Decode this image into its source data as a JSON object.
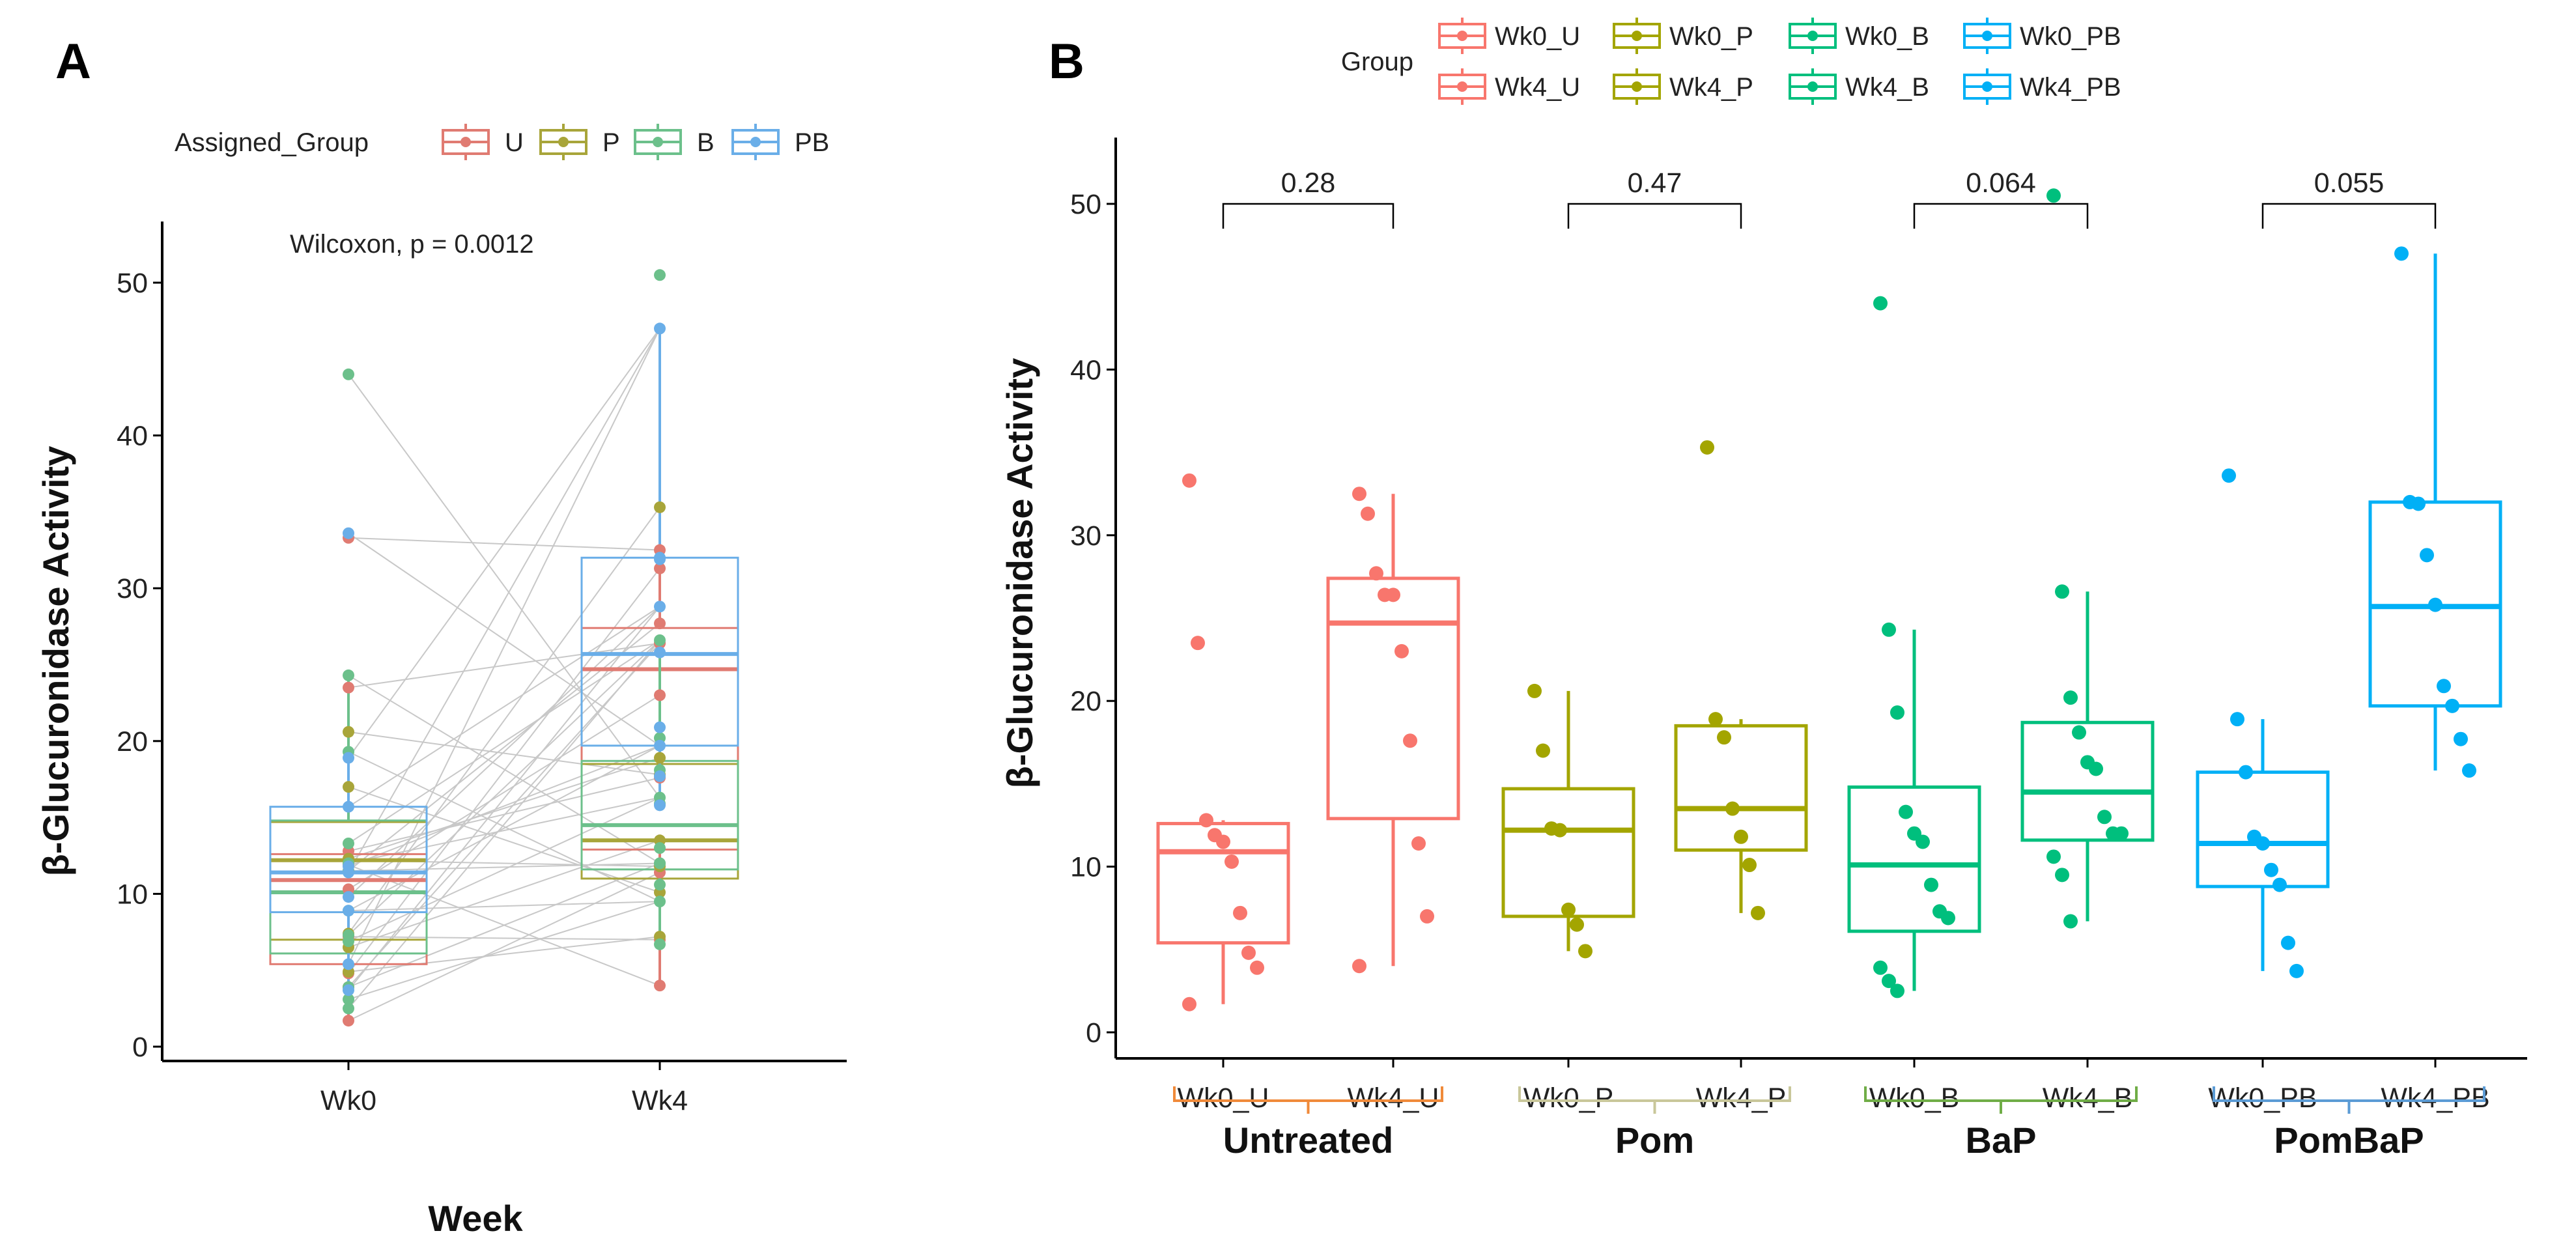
{
  "colors_a": {
    "U": "#e07b72",
    "P": "#a8a53a",
    "B": "#6cc08b",
    "PB": "#6aaee8"
  },
  "colors_b": {
    "U": "#f8766d",
    "P": "#a3a500",
    "B": "#00bf7d",
    "PB": "#00b0f6"
  },
  "chart_data": [
    {
      "panel": "A",
      "type": "box",
      "panel_label": "A",
      "xlabel": "Week",
      "ylabel": "β-Glucuronidase Activity",
      "ylim": [
        0,
        52
      ],
      "yticks": [
        0,
        10,
        20,
        30,
        40,
        50
      ],
      "categories": [
        "Wk0",
        "Wk4"
      ],
      "legend": {
        "title": "Assigned_Group",
        "entries": [
          "U",
          "P",
          "B",
          "PB"
        ],
        "placement": "top"
      },
      "annotation": "Wilcoxon, p = 0.0012",
      "paired_lines": true,
      "line_color": "#c8c8c8"
    },
    {
      "panel": "B",
      "type": "box",
      "panel_label": "B",
      "ylabel": "β-Glucuronidase Activity",
      "ylim": [
        0,
        52
      ],
      "yticks": [
        0,
        10,
        20,
        30,
        40,
        50
      ],
      "legend": {
        "title": "Group",
        "entries": [
          "Wk0_U",
          "Wk4_U",
          "Wk0_P",
          "Wk4_P",
          "Wk0_B",
          "Wk4_B",
          "Wk0_PB",
          "Wk4_PB"
        ],
        "placement": "top"
      },
      "categories": [
        "Wk0_U",
        "Wk4_U",
        "Wk0_P",
        "Wk4_P",
        "Wk0_B",
        "Wk4_B",
        "Wk0_PB",
        "Wk4_PB"
      ],
      "series": [
        {
          "name": "Wk0_U",
          "group": "U",
          "box": {
            "low": 1.7,
            "q1": 5.4,
            "median": 10.9,
            "q3": 12.6,
            "high": 12.8
          },
          "points": [
            33.3,
            23.5,
            12.8,
            11.9,
            11.5,
            10.3,
            7.2,
            4.8,
            3.9,
            1.7
          ]
        },
        {
          "name": "Wk4_U",
          "group": "U",
          "box": {
            "low": 4.0,
            "q1": 12.9,
            "median": 24.7,
            "q3": 27.4,
            "high": 32.5
          },
          "points": [
            32.5,
            31.3,
            27.7,
            26.4,
            26.4,
            23.0,
            17.6,
            11.4,
            7.0,
            4.0
          ]
        },
        {
          "name": "Wk0_P",
          "group": "P",
          "box": {
            "low": 4.9,
            "q1": 7.0,
            "median": 12.2,
            "q3": 14.7,
            "high": 20.6
          },
          "points": [
            20.6,
            17.0,
            12.3,
            12.2,
            7.4,
            6.5,
            4.9
          ]
        },
        {
          "name": "Wk4_P",
          "group": "P",
          "box": {
            "low": 7.2,
            "q1": 11.0,
            "median": 13.5,
            "q3": 18.5,
            "high": 18.9
          },
          "points": [
            35.3,
            18.9,
            17.8,
            13.5,
            11.8,
            10.1,
            7.2
          ]
        },
        {
          "name": "Wk0_B",
          "group": "B",
          "box": {
            "low": 2.5,
            "q1": 6.1,
            "median": 10.1,
            "q3": 14.8,
            "high": 24.3
          },
          "points": [
            44.0,
            24.3,
            19.3,
            13.3,
            12.0,
            11.5,
            8.9,
            7.3,
            6.9,
            3.9,
            3.1,
            2.5
          ]
        },
        {
          "name": "Wk4_B",
          "group": "B",
          "box": {
            "low": 6.7,
            "q1": 11.6,
            "median": 14.5,
            "q3": 18.7,
            "high": 26.6
          },
          "points": [
            50.5,
            26.6,
            20.2,
            18.1,
            16.3,
            15.9,
            13.0,
            12.0,
            12.0,
            10.6,
            9.5,
            6.7
          ]
        },
        {
          "name": "Wk0_PB",
          "group": "PB",
          "box": {
            "low": 3.7,
            "q1": 8.8,
            "median": 11.4,
            "q3": 15.7,
            "high": 18.9
          },
          "points": [
            33.6,
            18.9,
            15.7,
            11.8,
            11.4,
            9.8,
            8.9,
            5.4,
            3.7
          ]
        },
        {
          "name": "Wk4_PB",
          "group": "PB",
          "box": {
            "low": 15.8,
            "q1": 19.7,
            "median": 25.7,
            "q3": 32.0,
            "high": 47.0
          },
          "points": [
            47.0,
            32.0,
            31.9,
            28.8,
            25.8,
            20.9,
            19.7,
            17.7,
            15.8
          ]
        }
      ],
      "comparisons": [
        {
          "from": "Wk0_U",
          "to": "Wk4_U",
          "p": "0.28"
        },
        {
          "from": "Wk0_P",
          "to": "Wk4_P",
          "p": "0.47"
        },
        {
          "from": "Wk0_B",
          "to": "Wk4_B",
          "p": "0.064"
        },
        {
          "from": "Wk0_PB",
          "to": "Wk4_PB",
          "p": "0.055"
        }
      ],
      "treatment_groups": [
        {
          "label": "Untreated",
          "color": "#f08a3a"
        },
        {
          "label": "Pom",
          "color": "#c9c79a"
        },
        {
          "label": "BaP",
          "color": "#70ad47"
        },
        {
          "label": "PomBaP",
          "color": "#5b9bd5"
        }
      ]
    }
  ]
}
